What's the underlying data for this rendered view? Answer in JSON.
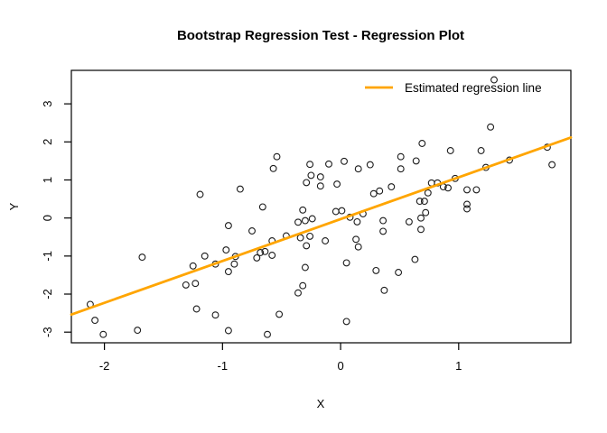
{
  "chart_data": {
    "type": "scatter",
    "title": "Bootstrap Regression Test - Regression Plot",
    "xlabel": "X",
    "ylabel": "Y",
    "xlim": [
      -2.28,
      1.95
    ],
    "ylim": [
      -3.28,
      3.88
    ],
    "x_ticks": [
      -2,
      -1,
      0,
      1
    ],
    "y_ticks": [
      -3,
      -2,
      -1,
      0,
      1,
      2,
      3
    ],
    "grid": false,
    "legend": {
      "position": "topright",
      "entries": [
        {
          "label": "Estimated regression line",
          "color": "#FFA500",
          "type": "line"
        }
      ]
    },
    "regression_line": {
      "slope": 1.1,
      "intercept": -0.03,
      "color": "#FFA500"
    },
    "point_style": {
      "marker": "open-circle",
      "stroke_color": "#1c1c1c"
    },
    "points": [
      [
        -1.19,
        0.62
      ],
      [
        -0.54,
        1.61
      ],
      [
        -0.57,
        1.3
      ],
      [
        -0.26,
        1.41
      ],
      [
        -0.1,
        1.42
      ],
      [
        0.03,
        1.49
      ],
      [
        0.15,
        1.29
      ],
      [
        0.25,
        1.4
      ],
      [
        -0.25,
        1.12
      ],
      [
        -0.17,
        1.08
      ],
      [
        -0.29,
        0.93
      ],
      [
        -0.17,
        0.84
      ],
      [
        -0.03,
        0.89
      ],
      [
        -0.85,
        0.76
      ],
      [
        0.28,
        0.64
      ],
      [
        0.33,
        0.71
      ],
      [
        0.43,
        0.82
      ],
      [
        0.51,
        1.61
      ],
      [
        0.51,
        1.29
      ],
      [
        -0.66,
        0.29
      ],
      [
        -0.32,
        0.21
      ],
      [
        -0.04,
        0.17
      ],
      [
        0.01,
        0.19
      ],
      [
        1.3,
        3.63
      ],
      [
        1.27,
        2.39
      ],
      [
        0.69,
        1.96
      ],
      [
        0.93,
        1.77
      ],
      [
        1.19,
        1.77
      ],
      [
        1.75,
        1.86
      ],
      [
        0.64,
        1.5
      ],
      [
        1.43,
        1.52
      ],
      [
        1.79,
        1.4
      ],
      [
        1.23,
        1.33
      ],
      [
        0.97,
        1.04
      ],
      [
        0.77,
        0.92
      ],
      [
        0.82,
        0.92
      ],
      [
        0.87,
        0.82
      ],
      [
        0.91,
        0.79
      ],
      [
        1.07,
        0.74
      ],
      [
        1.15,
        0.74
      ],
      [
        0.74,
        0.66
      ],
      [
        0.67,
        0.44
      ],
      [
        0.71,
        0.44
      ],
      [
        0.72,
        0.14
      ],
      [
        1.07,
        0.36
      ],
      [
        1.07,
        0.24
      ],
      [
        -0.95,
        -0.2
      ],
      [
        -1.68,
        -1.03
      ],
      [
        -1.15,
        -1.0
      ],
      [
        -0.97,
        -0.84
      ],
      [
        -1.25,
        -1.26
      ],
      [
        -1.06,
        -1.21
      ],
      [
        -0.95,
        -1.41
      ],
      [
        -1.31,
        -1.76
      ],
      [
        -1.23,
        -1.72
      ],
      [
        -2.12,
        -2.27
      ],
      [
        -1.22,
        -2.39
      ],
      [
        -1.06,
        -2.55
      ],
      [
        -2.08,
        -2.69
      ],
      [
        -2.01,
        -3.06
      ],
      [
        -1.72,
        -2.95
      ],
      [
        -0.95,
        -2.96
      ],
      [
        -0.36,
        -0.11
      ],
      [
        -0.3,
        -0.07
      ],
      [
        -0.24,
        -0.02
      ],
      [
        0.08,
        0.02
      ],
      [
        0.14,
        -0.1
      ],
      [
        0.19,
        0.11
      ],
      [
        0.36,
        -0.07
      ],
      [
        0.36,
        -0.35
      ],
      [
        -0.34,
        -0.52
      ],
      [
        -0.26,
        -0.48
      ],
      [
        -0.29,
        -0.73
      ],
      [
        -0.13,
        -0.6
      ],
      [
        0.13,
        -0.56
      ],
      [
        0.15,
        -0.76
      ],
      [
        -0.75,
        -0.34
      ],
      [
        -0.46,
        -0.47
      ],
      [
        -0.58,
        -0.6
      ],
      [
        -0.68,
        -0.91
      ],
      [
        -0.64,
        -0.88
      ],
      [
        -0.71,
        -1.05
      ],
      [
        -0.58,
        -0.98
      ],
      [
        -0.89,
        -1.01
      ],
      [
        -0.9,
        -1.21
      ],
      [
        -0.3,
        -1.3
      ],
      [
        0.05,
        -1.18
      ],
      [
        0.3,
        -1.38
      ],
      [
        0.49,
        -1.43
      ],
      [
        -0.32,
        -1.78
      ],
      [
        -0.36,
        -1.97
      ],
      [
        0.37,
        -1.9
      ],
      [
        -0.52,
        -2.53
      ],
      [
        0.05,
        -2.72
      ],
      [
        -0.62,
        -3.06
      ],
      [
        0.58,
        -0.1
      ],
      [
        0.68,
        0.0
      ],
      [
        0.68,
        -0.3
      ],
      [
        0.63,
        -1.09
      ]
    ]
  }
}
